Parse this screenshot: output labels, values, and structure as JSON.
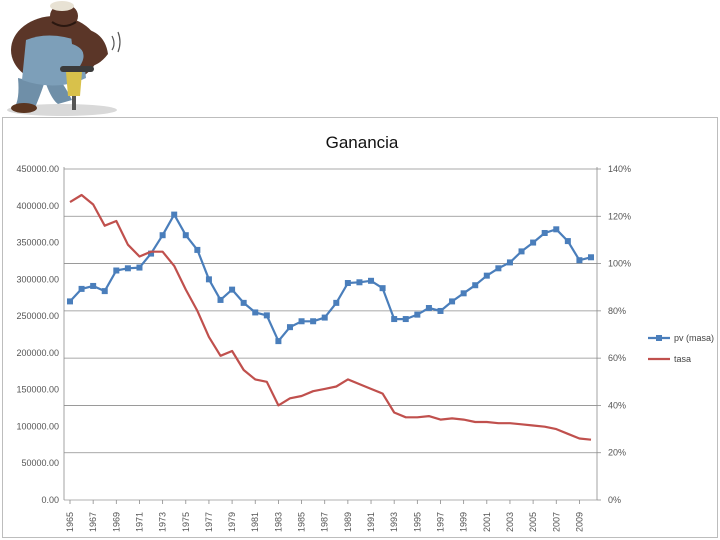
{
  "chart_data": {
    "type": "line",
    "title": "Ganancia",
    "xlabel": "",
    "ylabel": "",
    "x_tick_labels": [
      "1965",
      "1967",
      "1969",
      "1971",
      "1973",
      "1975",
      "1977",
      "1979",
      "1981",
      "1983",
      "1985",
      "1987",
      "1989",
      "1991",
      "1993",
      "1995",
      "1997",
      "1999",
      "2001",
      "2003",
      "2005",
      "2007",
      "2009"
    ],
    "y_left_ticks": [
      "0.00",
      "50000.00",
      "100000.00",
      "150000.00",
      "200000.00",
      "250000.00",
      "300000.00",
      "350000.00",
      "400000.00",
      "450000.00"
    ],
    "y_right_ticks": [
      "0%",
      "20%",
      "40%",
      "60%",
      "80%",
      "100%",
      "120%",
      "140%"
    ],
    "ylim_left": [
      0,
      450000
    ],
    "ylim_right": [
      0,
      1.4
    ],
    "grid": true,
    "legend_position": "right",
    "series": [
      {
        "name": "pv (masa)",
        "axis": "left",
        "color": "#4a7ebb",
        "marker": "square",
        "x": [
          1965,
          1966,
          1967,
          1968,
          1969,
          1970,
          1971,
          1972,
          1973,
          1974,
          1975,
          1976,
          1977,
          1978,
          1979,
          1980,
          1981,
          1982,
          1983,
          1984,
          1985,
          1986,
          1987,
          1988,
          1989,
          1990,
          1991,
          1992,
          1993,
          1994,
          1995,
          1996,
          1997,
          1998,
          1999,
          2000,
          2001,
          2002,
          2003,
          2004,
          2005,
          2006,
          2007,
          2008,
          2009,
          2010
        ],
        "values": [
          270000,
          287000,
          291000,
          284000,
          312000,
          315000,
          316000,
          335000,
          360000,
          388000,
          360000,
          340000,
          300000,
          272000,
          286000,
          268000,
          255000,
          251000,
          216000,
          235000,
          243000,
          243000,
          248000,
          268000,
          295000,
          296000,
          298000,
          288000,
          246000,
          246000,
          252000,
          261000,
          257000,
          270000,
          281000,
          292000,
          305000,
          315000,
          323000,
          338000,
          350000,
          363000,
          368000,
          352000,
          326000,
          330000
        ]
      },
      {
        "name": "tasa",
        "axis": "right",
        "color": "#c0504d",
        "marker": "none",
        "x": [
          1965,
          1966,
          1967,
          1968,
          1969,
          1970,
          1971,
          1972,
          1973,
          1974,
          1975,
          1976,
          1977,
          1978,
          1979,
          1980,
          1981,
          1982,
          1983,
          1984,
          1985,
          1986,
          1987,
          1988,
          1989,
          1990,
          1991,
          1992,
          1993,
          1994,
          1995,
          1996,
          1997,
          1998,
          1999,
          2000,
          2001,
          2002,
          2003,
          2004,
          2005,
          2006,
          2007,
          2008,
          2009,
          2010
        ],
        "values": [
          1.26,
          1.29,
          1.25,
          1.16,
          1.18,
          1.08,
          1.03,
          1.05,
          1.05,
          0.99,
          0.89,
          0.8,
          0.69,
          0.61,
          0.63,
          0.55,
          0.51,
          0.5,
          0.4,
          0.43,
          0.44,
          0.46,
          0.47,
          0.48,
          0.51,
          0.49,
          0.47,
          0.45,
          0.37,
          0.35,
          0.35,
          0.355,
          0.34,
          0.345,
          0.34,
          0.33,
          0.33,
          0.325,
          0.325,
          0.32,
          0.315,
          0.31,
          0.3,
          0.28,
          0.26,
          0.255
        ]
      }
    ]
  },
  "illustration": {
    "icon": "worker-jackhammer-icon"
  }
}
